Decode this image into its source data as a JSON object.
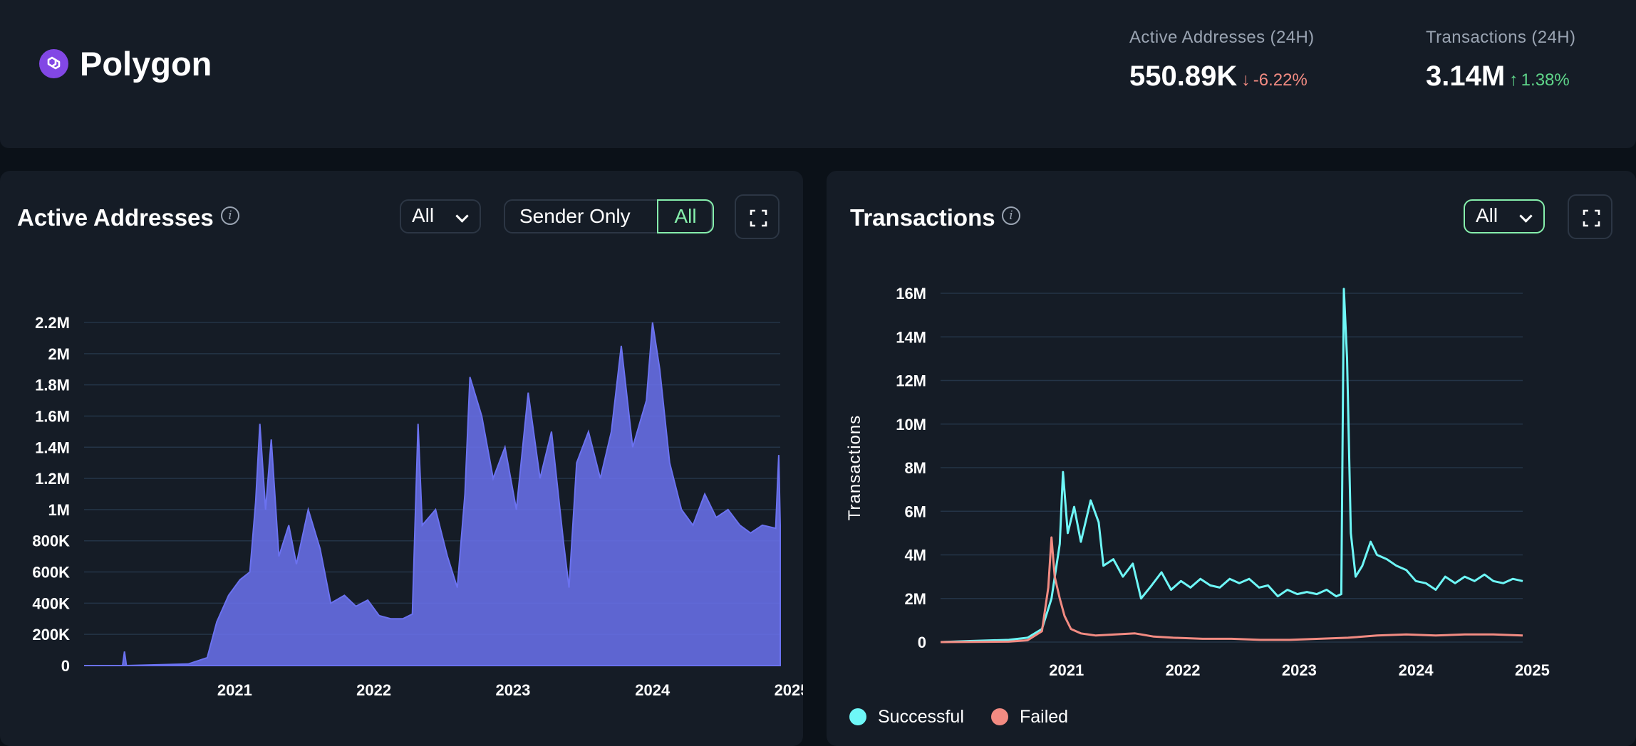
{
  "header": {
    "title": "Polygon",
    "stats": [
      {
        "label": "Active Addresses (24H)",
        "value": "550.89K",
        "arrow": "↓",
        "change": "-6.22%",
        "direction": "down",
        "color": "#f28b82"
      },
      {
        "label": "Transactions (24H)",
        "value": "3.14M",
        "arrow": "↑",
        "change": "1.38%",
        "direction": "up",
        "color": "#5fd68a"
      }
    ]
  },
  "icons": {
    "logo": "polygon-logo-icon",
    "info": "info-icon",
    "chevron": "chevron-down-icon",
    "expand": "fullscreen-icon"
  },
  "active_panel": {
    "title": "Active Addresses",
    "info_glyph": "i",
    "range_select": "All",
    "toggle_options": [
      "Sender Only",
      "All"
    ],
    "toggle_selected": "All"
  },
  "tx_panel": {
    "title": "Transactions",
    "info_glyph": "i",
    "range_select": "All"
  },
  "colors": {
    "background": "#0b1118",
    "panel": "#151c26",
    "accent": "#86efac",
    "active_line": "#6b72f0",
    "successful": "#6ef7f7",
    "failed": "#f28b82",
    "grid": "#243447"
  },
  "chart_data": [
    {
      "type": "area",
      "ylabel": "",
      "x_ticks": [
        "2021",
        "2022",
        "2023",
        "2024",
        "2025"
      ],
      "y_ticks": [
        "0",
        "200K",
        "400K",
        "600K",
        "800K",
        "1M",
        "1.2M",
        "1.4M",
        "1.6M",
        "1.8M",
        "2M",
        "2.2M"
      ],
      "ylim": [
        0,
        2200000
      ],
      "xlim": [
        "2020-06-01",
        "2025-06-01"
      ],
      "grid": true,
      "series": [
        {
          "color": "#6b72f0",
          "points": [
            [
              "2020-06-01",
              0
            ],
            [
              "2020-09-10",
              0
            ],
            [
              "2020-09-15",
              90000
            ],
            [
              "2020-09-20",
              0
            ],
            [
              "2021-03-01",
              10000
            ],
            [
              "2021-04-20",
              50000
            ],
            [
              "2021-05-15",
              280000
            ],
            [
              "2021-06-15",
              450000
            ],
            [
              "2021-07-15",
              550000
            ],
            [
              "2021-08-10",
              600000
            ],
            [
              "2021-08-25",
              1050000
            ],
            [
              "2021-09-05",
              1550000
            ],
            [
              "2021-09-20",
              1000000
            ],
            [
              "2021-10-05",
              1450000
            ],
            [
              "2021-10-25",
              700000
            ],
            [
              "2021-11-20",
              900000
            ],
            [
              "2021-12-10",
              650000
            ],
            [
              "2022-01-10",
              1000000
            ],
            [
              "2022-02-10",
              750000
            ],
            [
              "2022-03-10",
              400000
            ],
            [
              "2022-04-15",
              450000
            ],
            [
              "2022-05-15",
              380000
            ],
            [
              "2022-06-15",
              420000
            ],
            [
              "2022-07-15",
              320000
            ],
            [
              "2022-08-15",
              300000
            ],
            [
              "2022-09-15",
              300000
            ],
            [
              "2022-10-10",
              330000
            ],
            [
              "2022-10-25",
              1550000
            ],
            [
              "2022-11-05",
              900000
            ],
            [
              "2022-12-10",
              1000000
            ],
            [
              "2023-01-10",
              700000
            ],
            [
              "2023-02-05",
              500000
            ],
            [
              "2023-02-25",
              1100000
            ],
            [
              "2023-03-10",
              1850000
            ],
            [
              "2023-04-10",
              1600000
            ],
            [
              "2023-05-10",
              1200000
            ],
            [
              "2023-06-10",
              1400000
            ],
            [
              "2023-07-10",
              1000000
            ],
            [
              "2023-08-10",
              1750000
            ],
            [
              "2023-09-10",
              1200000
            ],
            [
              "2023-10-10",
              1500000
            ],
            [
              "2023-11-10",
              800000
            ],
            [
              "2023-11-25",
              500000
            ],
            [
              "2023-12-15",
              1300000
            ],
            [
              "2024-01-15",
              1500000
            ],
            [
              "2024-02-15",
              1200000
            ],
            [
              "2024-03-15",
              1500000
            ],
            [
              "2024-04-10",
              2050000
            ],
            [
              "2024-05-10",
              1400000
            ],
            [
              "2024-06-15",
              1700000
            ],
            [
              "2024-07-01",
              2200000
            ],
            [
              "2024-07-20",
              1900000
            ],
            [
              "2024-08-15",
              1300000
            ],
            [
              "2024-09-15",
              1000000
            ],
            [
              "2024-10-15",
              900000
            ],
            [
              "2024-11-15",
              1100000
            ],
            [
              "2024-12-15",
              950000
            ],
            [
              "2025-01-15",
              1000000
            ],
            [
              "2025-02-15",
              900000
            ],
            [
              "2025-03-15",
              850000
            ],
            [
              "2025-04-15",
              900000
            ],
            [
              "2025-05-20",
              880000
            ],
            [
              "2025-05-28",
              1350000
            ],
            [
              "2025-06-01",
              900000
            ]
          ]
        }
      ]
    },
    {
      "type": "line",
      "ylabel": "Transactions",
      "x_ticks": [
        "2021",
        "2022",
        "2023",
        "2024",
        "2025"
      ],
      "y_ticks": [
        "0",
        "2M",
        "4M",
        "6M",
        "8M",
        "10M",
        "12M",
        "14M",
        "16M"
      ],
      "ylim": [
        0,
        16000000
      ],
      "xlim": [
        "2020-06-01",
        "2025-06-01"
      ],
      "grid": true,
      "series": [
        {
          "name": "Successful",
          "color": "#6ef7f7",
          "points": [
            [
              "2020-06-01",
              0
            ],
            [
              "2020-09-01",
              50000
            ],
            [
              "2021-01-01",
              100000
            ],
            [
              "2021-03-01",
              200000
            ],
            [
              "2021-04-15",
              600000
            ],
            [
              "2021-05-15",
              2000000
            ],
            [
              "2021-06-10",
              4500000
            ],
            [
              "2021-06-20",
              7800000
            ],
            [
              "2021-07-05",
              5000000
            ],
            [
              "2021-07-25",
              6200000
            ],
            [
              "2021-08-15",
              4600000
            ],
            [
              "2021-09-15",
              6500000
            ],
            [
              "2021-10-10",
              5500000
            ],
            [
              "2021-10-25",
              3500000
            ],
            [
              "2021-11-25",
              3800000
            ],
            [
              "2021-12-25",
              3000000
            ],
            [
              "2022-01-25",
              3600000
            ],
            [
              "2022-02-20",
              2000000
            ],
            [
              "2022-03-25",
              2600000
            ],
            [
              "2022-04-25",
              3200000
            ],
            [
              "2022-05-25",
              2400000
            ],
            [
              "2022-06-25",
              2800000
            ],
            [
              "2022-07-25",
              2500000
            ],
            [
              "2022-08-25",
              2900000
            ],
            [
              "2022-09-25",
              2600000
            ],
            [
              "2022-10-25",
              2500000
            ],
            [
              "2022-11-25",
              2900000
            ],
            [
              "2022-12-25",
              2700000
            ],
            [
              "2023-01-25",
              2900000
            ],
            [
              "2023-02-25",
              2500000
            ],
            [
              "2023-03-25",
              2600000
            ],
            [
              "2023-04-25",
              2100000
            ],
            [
              "2023-05-25",
              2400000
            ],
            [
              "2023-06-25",
              2200000
            ],
            [
              "2023-07-25",
              2300000
            ],
            [
              "2023-08-25",
              2200000
            ],
            [
              "2023-09-25",
              2400000
            ],
            [
              "2023-10-25",
              2100000
            ],
            [
              "2023-11-10",
              2200000
            ],
            [
              "2023-11-18",
              16200000
            ],
            [
              "2023-11-28",
              13000000
            ],
            [
              "2023-12-10",
              5000000
            ],
            [
              "2023-12-25",
              3000000
            ],
            [
              "2024-01-15",
              3500000
            ],
            [
              "2024-02-10",
              4600000
            ],
            [
              "2024-03-01",
              4000000
            ],
            [
              "2024-04-01",
              3800000
            ],
            [
              "2024-05-01",
              3500000
            ],
            [
              "2024-06-01",
              3300000
            ],
            [
              "2024-07-01",
              2800000
            ],
            [
              "2024-08-01",
              2700000
            ],
            [
              "2024-09-01",
              2400000
            ],
            [
              "2024-10-01",
              3000000
            ],
            [
              "2024-11-01",
              2700000
            ],
            [
              "2024-12-01",
              3000000
            ],
            [
              "2025-01-01",
              2800000
            ],
            [
              "2025-02-01",
              3100000
            ],
            [
              "2025-03-01",
              2800000
            ],
            [
              "2025-04-01",
              2700000
            ],
            [
              "2025-05-01",
              2900000
            ],
            [
              "2025-06-01",
              2800000
            ]
          ]
        },
        {
          "name": "Failed",
          "color": "#f28b82",
          "points": [
            [
              "2020-06-01",
              0
            ],
            [
              "2021-01-01",
              20000
            ],
            [
              "2021-03-01",
              80000
            ],
            [
              "2021-04-15",
              500000
            ],
            [
              "2021-05-05",
              2500000
            ],
            [
              "2021-05-15",
              4800000
            ],
            [
              "2021-05-25",
              3000000
            ],
            [
              "2021-06-10",
              2000000
            ],
            [
              "2021-06-25",
              1200000
            ],
            [
              "2021-07-15",
              600000
            ],
            [
              "2021-08-15",
              400000
            ],
            [
              "2021-10-01",
              300000
            ],
            [
              "2021-12-01",
              350000
            ],
            [
              "2022-02-01",
              400000
            ],
            [
              "2022-04-01",
              250000
            ],
            [
              "2022-06-01",
              200000
            ],
            [
              "2022-09-01",
              150000
            ],
            [
              "2022-12-01",
              150000
            ],
            [
              "2023-03-01",
              100000
            ],
            [
              "2023-06-01",
              100000
            ],
            [
              "2023-09-01",
              150000
            ],
            [
              "2023-12-01",
              200000
            ],
            [
              "2024-03-01",
              300000
            ],
            [
              "2024-06-01",
              350000
            ],
            [
              "2024-09-01",
              300000
            ],
            [
              "2024-12-01",
              350000
            ],
            [
              "2025-03-01",
              350000
            ],
            [
              "2025-06-01",
              300000
            ]
          ]
        }
      ]
    }
  ]
}
